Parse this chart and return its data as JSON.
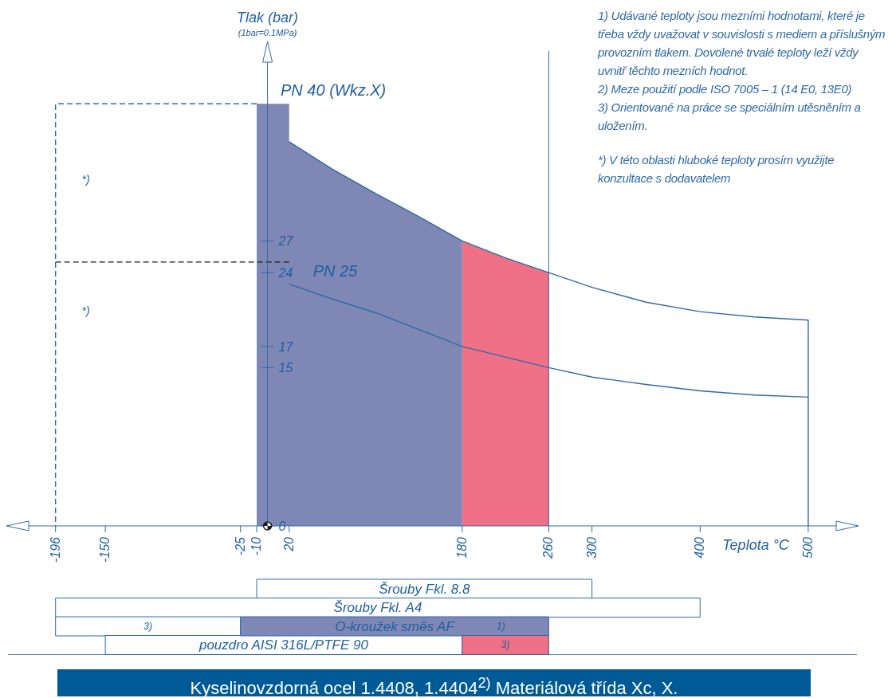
{
  "chart_data": [
    {
      "type": "area",
      "ylabel": "Tlak (bar)",
      "subtitle": "(1bar=0.1MPa)",
      "xlabel": "Teplota °C",
      "xlim": [
        -240,
        545
      ],
      "xticks": [
        -196,
        -150,
        -25,
        -10,
        20,
        180,
        260,
        300,
        400,
        500
      ],
      "ylim": [
        0,
        45
      ],
      "yticks": [
        0,
        15,
        17,
        24,
        27
      ],
      "ref_lines": [
        {
          "axis": "x",
          "value": 260,
          "color": "#2f6aa8"
        },
        {
          "axis": "x",
          "value": 0,
          "color": "#2f6aa8"
        }
      ],
      "annotations": [
        "1)  Udávané teploty jsou mezními hodnotami, které je třeba vždy uvažovat v souvislosti s mediem a příslušným provozním tlakem. Dovolené trvalé teploty leží vždy uvnitř těchto mezních hodnot.",
        "2)  Meze použití podle ISO 7005 – 1 (14 E0, 13E0)",
        "3)  Orientované na práce se speciálním utěsněním a uložením.",
        "*)  V této oblasti hluboké teploty prosím využijte konzultace s dodavatelem",
        "*)",
        "*)"
      ],
      "series": [
        {
          "name": "PN 40 (Wkz.X)",
          "type": "area",
          "color": "#7f88b5",
          "x": [
            -10,
            20,
            20,
            60,
            100,
            140,
            180
          ],
          "values": [
            40,
            40,
            36.4,
            33.8,
            31.5,
            29.3,
            27
          ]
        },
        {
          "type": "area",
          "color": "#f07086",
          "x": [
            180,
            220,
            260
          ],
          "values": [
            27,
            25.4,
            24
          ]
        },
        {
          "type": "line",
          "color": "#2f6aa8",
          "x": [
            20,
            60,
            100,
            140,
            180,
            220,
            260,
            300,
            350,
            400,
            450,
            500,
            500
          ],
          "values": [
            36.4,
            33.8,
            31.5,
            29.3,
            27,
            25.4,
            24,
            22.6,
            21.2,
            20.3,
            19.8,
            19.5,
            0
          ]
        },
        {
          "name": "PN 25",
          "type": "line",
          "color": "#2f6aa8",
          "x": [
            20,
            60,
            100,
            140,
            180,
            220,
            260,
            300,
            350,
            400,
            450,
            500
          ],
          "values": [
            22.9,
            21.5,
            20.2,
            18.6,
            17,
            16,
            15,
            14.1,
            13.4,
            12.8,
            12.4,
            12.2
          ]
        },
        {
          "type": "line",
          "color": "#2f6aa8",
          "line_style": "dashed",
          "x": [
            -10,
            -196,
            -196
          ],
          "values": [
            40,
            40,
            0
          ]
        },
        {
          "type": "line",
          "color": "#1a1a1a",
          "line_style": "dashed",
          "x": [
            -196,
            20
          ],
          "values": [
            25,
            25
          ]
        }
      ]
    },
    {
      "type": "bar",
      "orientation": "horizontal",
      "title": "Kyselinovzdorná ocel 1.4408, 1.4404$^{2)}$ Materiálová třída Xc, X.",
      "categories": [
        "Šrouby Fkl. 8.8",
        "Šrouby Fkl. A4",
        "O-kroužek směs AF",
        "pouzdro AISI 316L/PTFE 90"
      ],
      "xlim": [
        -240,
        545
      ],
      "xticks": [
        -196,
        -150,
        -25,
        -10,
        20,
        180,
        260,
        300,
        400,
        500
      ],
      "tick_labels": false,
      "series": [
        {
          "color": "#ffffff",
          "values": [
            310,
            596,
            171,
            330
          ],
          "base": [
            -10,
            -196,
            -196,
            -150
          ]
        },
        {
          "color": "#7f88b5",
          "values": [
            null,
            null,
            285,
            null
          ],
          "base": [
            null,
            null,
            -25,
            null
          ]
        },
        {
          "color": "#f07086",
          "values": [
            null,
            null,
            null,
            80
          ],
          "base": [
            null,
            null,
            null,
            180
          ]
        }
      ],
      "annotations": [
        "3)",
        "1)",
        "3)"
      ]
    }
  ]
}
